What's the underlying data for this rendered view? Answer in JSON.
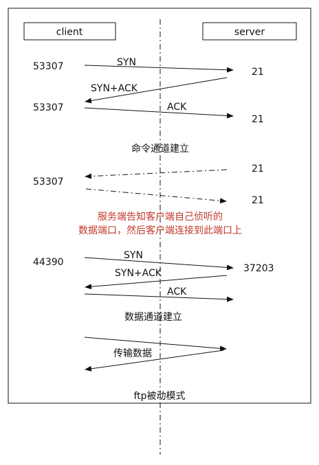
{
  "actors": {
    "client": "client",
    "server": "server"
  },
  "command_channel": {
    "syn": {
      "client_port": "53307",
      "label": "SYN",
      "server_port": "21"
    },
    "syn_ack": {
      "label": "SYN+ACK",
      "client_port": "53307"
    },
    "ack": {
      "label": "ACK",
      "server_port": "21"
    },
    "caption": "命令通道建立"
  },
  "notification": {
    "server_port_top": "21",
    "client_port": "53307",
    "server_port_bottom": "21",
    "text_line1": "服务端告知客户端自己侦听的",
    "text_line2": "数据端口，然后客户端连接到此端口上",
    "text_color": "#c0392b"
  },
  "data_channel": {
    "syn": {
      "client_port": "44390",
      "label": "SYN",
      "server_port": "37203"
    },
    "syn_ack": {
      "label": "SYN+ACK"
    },
    "ack": {
      "label": "ACK"
    },
    "caption": "数据通道建立"
  },
  "transfer": {
    "label": "传输数据"
  },
  "footer": {
    "title": "ftp被动模式"
  }
}
